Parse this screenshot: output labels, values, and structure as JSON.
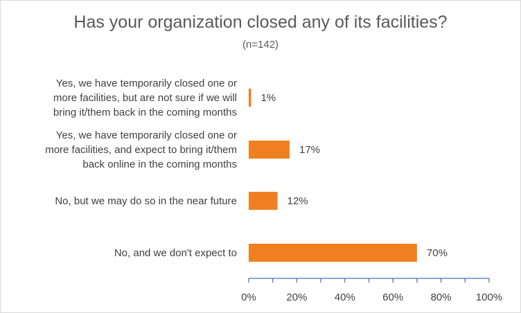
{
  "chart_data": {
    "type": "bar",
    "orientation": "horizontal",
    "title": "Has your organization closed any of its facilities?",
    "subtitle": "(n=142)",
    "categories": [
      [
        "Yes, we have temporarily closed one or",
        "more facilities, but are not sure if we will",
        "bring it/them back in the coming months"
      ],
      [
        "Yes, we have temporarily closed one or",
        "more facilities, and expect to bring it/them",
        "back online in the coming months"
      ],
      [
        "No, but we may do so in the near future"
      ],
      [
        "No, and we don't expect to"
      ]
    ],
    "values": [
      1,
      17,
      12,
      70
    ],
    "data_labels": [
      "1%",
      "17%",
      "12%",
      "70%"
    ],
    "xlim": [
      0,
      100
    ],
    "xticks": [
      0,
      20,
      40,
      60,
      80,
      100
    ],
    "xtick_labels": [
      "0%",
      "20%",
      "40%",
      "60%",
      "80%",
      "100%"
    ],
    "bar_color": "#f07f20",
    "axis_color": "#4472c4",
    "grid": false,
    "legend": "none"
  }
}
